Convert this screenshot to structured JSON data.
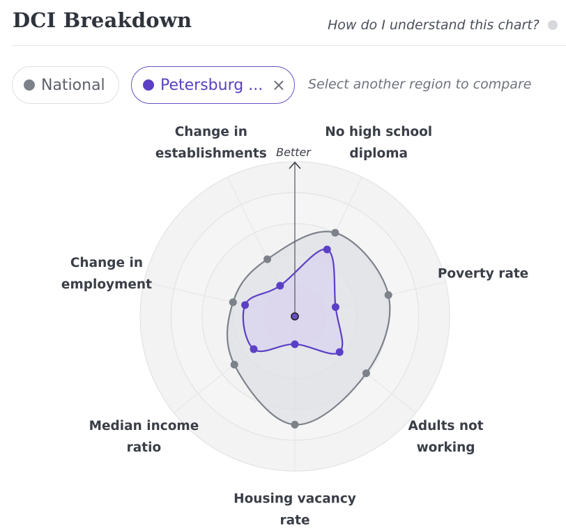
{
  "header": {
    "title": "DCI Breakdown",
    "help_link": "How do I understand this chart?"
  },
  "filters": {
    "national_label": "National",
    "selected_label": "Petersburg ...",
    "close_symbol": "×",
    "compare_placeholder": "Select another region to compare"
  },
  "colors": {
    "national": "#7c818a",
    "selected": "#5b3fc6",
    "national_fill": "#dfe0e4",
    "selected_fill": "#d9d2ee"
  },
  "chart_data": {
    "type": "radar",
    "direction_label": "Better",
    "rlim": [
      0,
      100
    ],
    "ring_count": 5,
    "axes": [
      {
        "label": [
          "No high school",
          "diploma"
        ]
      },
      {
        "label": [
          "Poverty rate"
        ]
      },
      {
        "label": [
          "Adults not",
          "working"
        ]
      },
      {
        "label": [
          "Housing vacancy",
          "rate"
        ]
      },
      {
        "label": [
          "Median income",
          "ratio"
        ]
      },
      {
        "label": [
          "Change in",
          "employment"
        ]
      },
      {
        "label": [
          "Change in",
          "establishments"
        ]
      }
    ],
    "series": [
      {
        "name": "National",
        "values": [
          60,
          62,
          59,
          70,
          50,
          41,
          41
        ]
      },
      {
        "name": "Petersburg ...",
        "values": [
          48,
          27,
          37,
          18,
          34,
          33,
          22
        ]
      }
    ],
    "center_value": 0
  }
}
